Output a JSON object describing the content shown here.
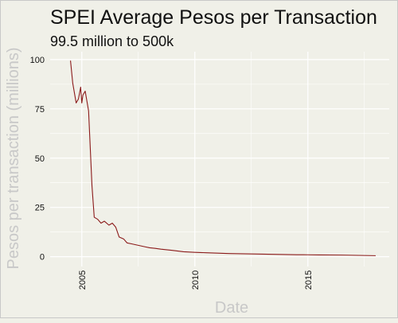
{
  "chart_data": {
    "type": "line",
    "title": "SPEI Average Pesos per Transaction",
    "subtitle": "99.5 million to 500k",
    "xlabel": "Date",
    "ylabel": "Pesos per transaction (millions)",
    "xlim": [
      2003.6,
      2018.6
    ],
    "ylim": [
      -5,
      104
    ],
    "x_ticks": [
      2005,
      2010,
      2015
    ],
    "x_tick_labels": [
      "2005",
      "2010",
      "2015"
    ],
    "y_ticks": [
      0,
      25,
      50,
      75,
      100
    ],
    "y_tick_labels": [
      "0",
      "25",
      "50",
      "75",
      "100"
    ],
    "grid": true,
    "series": [
      {
        "color": "#8b1a1a",
        "x": [
          2004.5,
          2004.6,
          2004.75,
          2004.85,
          2004.95,
          2005.0,
          2005.05,
          2005.15,
          2005.3,
          2005.45,
          2005.55,
          2005.7,
          2005.85,
          2006.0,
          2006.2,
          2006.35,
          2006.5,
          2006.65,
          2006.85,
          2007.0,
          2007.2,
          2007.4,
          2007.6,
          2007.8,
          2008.0,
          2008.25,
          2008.5,
          2008.75,
          2009.0,
          2009.5,
          2010.0,
          2010.5,
          2011.0,
          2011.5,
          2012.0,
          2012.5,
          2013.0,
          2013.5,
          2014.0,
          2014.5,
          2015.0,
          2015.5,
          2016.0,
          2016.5,
          2017.0,
          2017.5,
          2018.0
        ],
        "y": [
          99.5,
          88,
          78,
          80,
          86,
          78,
          82,
          84,
          74,
          36,
          20,
          19,
          17,
          18,
          16,
          17,
          15,
          10,
          9,
          7,
          6.5,
          6,
          5.5,
          5,
          4.5,
          4.2,
          3.8,
          3.5,
          3.2,
          2.5,
          2.2,
          2,
          1.8,
          1.6,
          1.5,
          1.4,
          1.3,
          1.2,
          1.1,
          1,
          0.95,
          0.9,
          0.85,
          0.8,
          0.7,
          0.6,
          0.5
        ]
      }
    ]
  }
}
